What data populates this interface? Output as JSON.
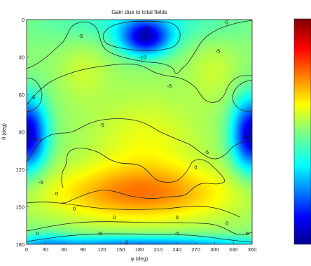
{
  "chart_data": {
    "type": "heatmap",
    "title": "Gain due to total fields",
    "xlabel": "φ (deg)",
    "ylabel": "θ (deg)",
    "xlim": [
      0,
      360
    ],
    "ylim": [
      0,
      180
    ],
    "y_axis_inverted": true,
    "x_ticks": [
      "0",
      "30",
      "60",
      "90",
      "120",
      "150",
      "180",
      "210",
      "240",
      "270",
      "300",
      "330",
      "360"
    ],
    "y_ticks": [
      "0",
      "30",
      "60",
      "90",
      "120",
      "150",
      "180"
    ],
    "colormap": "jet",
    "colorbar": true,
    "contour_levels": [
      -10,
      -5,
      0
    ],
    "contour_labels": [
      {
        "text": "-10",
        "phi": 190,
        "theta": 7
      },
      {
        "text": "-10",
        "phi": 185,
        "theta": 30
      },
      {
        "text": "-5",
        "phi": 86,
        "theta": 13
      },
      {
        "text": "-5",
        "phi": 318,
        "theta": 2
      },
      {
        "text": "-5",
        "phi": 228,
        "theta": 53
      },
      {
        "text": "-5",
        "phi": 305,
        "theta": 25
      },
      {
        "text": "-5",
        "phi": 10,
        "theta": 62
      },
      {
        "text": "-5",
        "phi": 120,
        "theta": 84
      },
      {
        "text": "-10",
        "phi": 17,
        "theta": 96
      },
      {
        "text": "-5",
        "phi": 23,
        "theta": 130
      },
      {
        "text": "-5",
        "phi": 287,
        "theta": 106
      },
      {
        "text": "-10",
        "phi": 348,
        "theta": 94
      },
      {
        "text": "0",
        "phi": 270,
        "theta": 118
      },
      {
        "text": "0",
        "phi": 48,
        "theta": 139
      },
      {
        "text": "0",
        "phi": 76,
        "theta": 151
      },
      {
        "text": "0",
        "phi": 140,
        "theta": 158
      },
      {
        "text": "0",
        "phi": 240,
        "theta": 158
      },
      {
        "text": "0",
        "phi": 160,
        "theta": 198
      },
      {
        "text": "0",
        "phi": 320,
        "theta": 163
      },
      {
        "text": "0",
        "phi": 17,
        "theta": 171
      },
      {
        "text": "-5",
        "phi": 117,
        "theta": 171
      },
      {
        "text": "-5",
        "phi": 240,
        "theta": 171
      },
      {
        "text": "0",
        "phi": 352,
        "theta": 171
      }
    ]
  }
}
